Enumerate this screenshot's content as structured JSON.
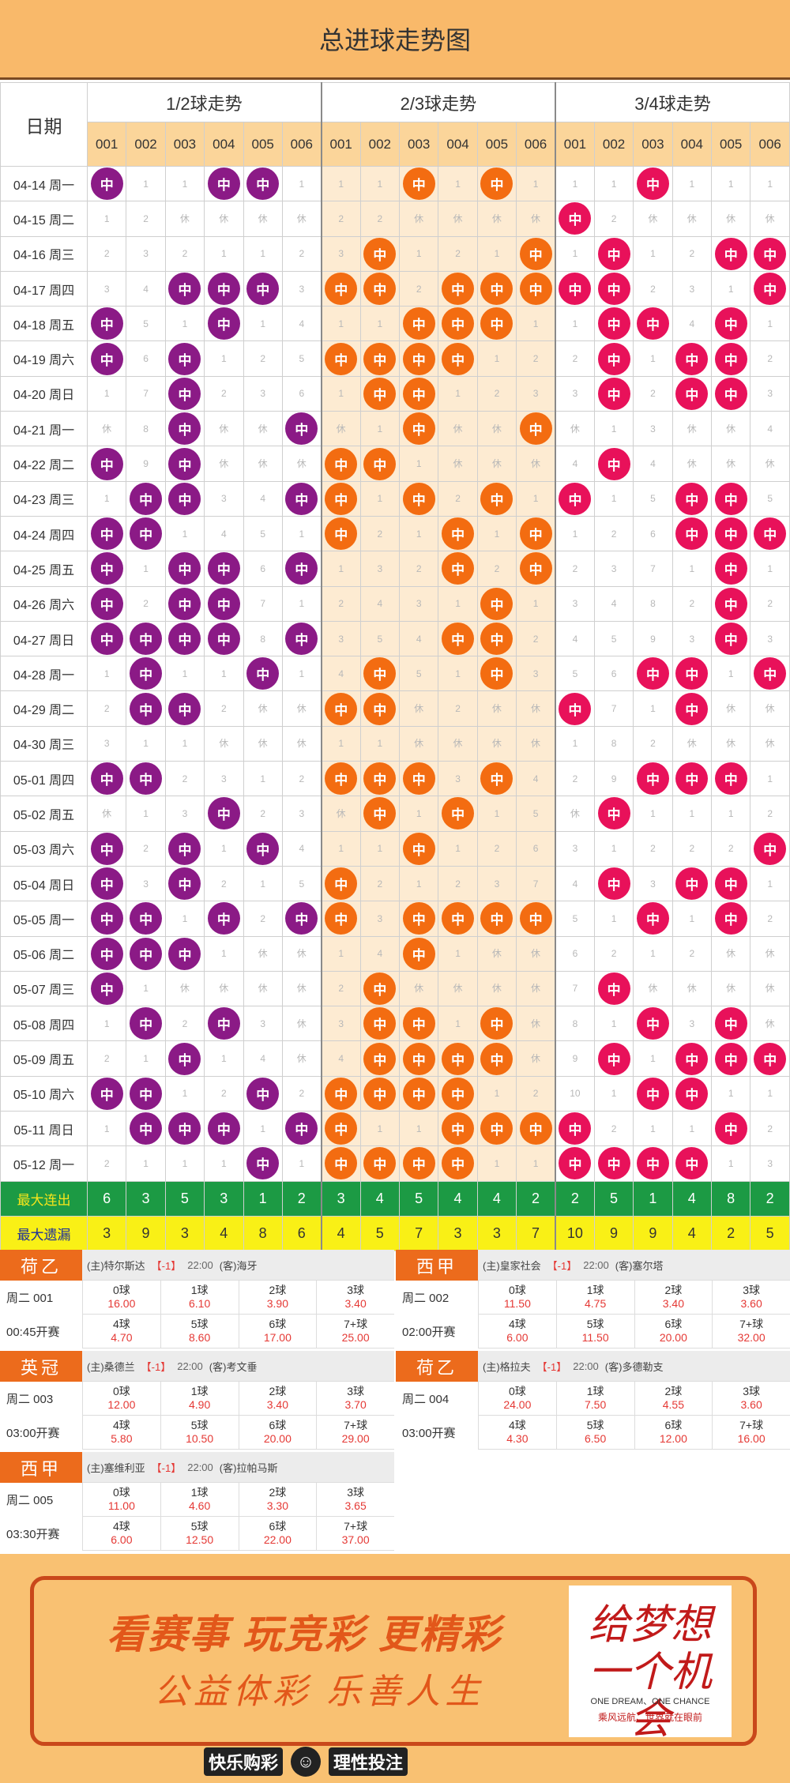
{
  "title": "总进球走势图",
  "header": {
    "date_label": "日期",
    "groups": [
      "1/2球走势",
      "2/3球走势",
      "3/4球走势"
    ],
    "sub_cols": [
      "001",
      "002",
      "003",
      "004",
      "005",
      "006"
    ]
  },
  "hit_label": "中",
  "dates": [
    "04-14 周一",
    "04-15 周二",
    "04-16 周三",
    "04-17 周四",
    "04-18 周五",
    "04-19 周六",
    "04-20 周日",
    "04-21 周一",
    "04-22 周二",
    "04-23 周三",
    "04-24 周四",
    "04-25 周五",
    "04-26 周六",
    "04-27 周日",
    "04-28 周一",
    "04-29 周二",
    "04-30 周三",
    "05-01 周四",
    "05-02 周五",
    "05-03 周六",
    "05-04 周日",
    "05-05 周一",
    "05-06 周二",
    "05-07 周三",
    "05-08 周四",
    "05-09 周五",
    "05-10 周六",
    "05-11 周日",
    "05-12 周一"
  ],
  "g1": [
    [
      "中",
      "1",
      "1",
      "中",
      "中",
      "1"
    ],
    [
      "1",
      "2",
      "休",
      "休",
      "休",
      "休"
    ],
    [
      "2",
      "3",
      "2",
      "1",
      "1",
      "2"
    ],
    [
      "3",
      "4",
      "中",
      "中",
      "中",
      "3"
    ],
    [
      "中",
      "5",
      "1",
      "中",
      "1",
      "4"
    ],
    [
      "中",
      "6",
      "中",
      "1",
      "2",
      "5"
    ],
    [
      "1",
      "7",
      "中",
      "2",
      "3",
      "6"
    ],
    [
      "休",
      "8",
      "中",
      "休",
      "休",
      "中"
    ],
    [
      "中",
      "9",
      "中",
      "休",
      "休",
      "休"
    ],
    [
      "1",
      "中",
      "中",
      "3",
      "4",
      "中"
    ],
    [
      "中",
      "中",
      "1",
      "4",
      "5",
      "1"
    ],
    [
      "中",
      "1",
      "中",
      "中",
      "6",
      "中"
    ],
    [
      "中",
      "2",
      "中",
      "中",
      "7",
      "1"
    ],
    [
      "中",
      "中",
      "中",
      "中",
      "8",
      "中"
    ],
    [
      "1",
      "中",
      "1",
      "1",
      "中",
      "1"
    ],
    [
      "2",
      "中",
      "中",
      "2",
      "休",
      "休"
    ],
    [
      "3",
      "1",
      "1",
      "休",
      "休",
      "休"
    ],
    [
      "中",
      "中",
      "2",
      "3",
      "1",
      "2"
    ],
    [
      "休",
      "1",
      "3",
      "中",
      "2",
      "3"
    ],
    [
      "中",
      "2",
      "中",
      "1",
      "中",
      "4"
    ],
    [
      "中",
      "3",
      "中",
      "2",
      "1",
      "5"
    ],
    [
      "中",
      "中",
      "1",
      "中",
      "2",
      "中"
    ],
    [
      "中",
      "中",
      "中",
      "1",
      "休",
      "休"
    ],
    [
      "中",
      "1",
      "休",
      "休",
      "休",
      "休"
    ],
    [
      "1",
      "中",
      "2",
      "中",
      "3",
      "休"
    ],
    [
      "2",
      "1",
      "中",
      "1",
      "4",
      "休"
    ],
    [
      "中",
      "中",
      "1",
      "2",
      "中",
      "2"
    ],
    [
      "1",
      "中",
      "中",
      "中",
      "1",
      "中"
    ],
    [
      "2",
      "1",
      "1",
      "1",
      "中",
      "1"
    ]
  ],
  "g2": [
    [
      "1",
      "1",
      "中",
      "1",
      "中",
      "1"
    ],
    [
      "2",
      "2",
      "休",
      "休",
      "休",
      "休"
    ],
    [
      "3",
      "中",
      "1",
      "2",
      "1",
      "中"
    ],
    [
      "中",
      "中",
      "2",
      "中",
      "中",
      "中"
    ],
    [
      "1",
      "1",
      "中",
      "中",
      "中",
      "1"
    ],
    [
      "中",
      "中",
      "中",
      "中",
      "1",
      "2"
    ],
    [
      "1",
      "中",
      "中",
      "1",
      "2",
      "3"
    ],
    [
      "休",
      "1",
      "中",
      "休",
      "休",
      "中"
    ],
    [
      "中",
      "中",
      "1",
      "休",
      "休",
      "休"
    ],
    [
      "中",
      "1",
      "中",
      "2",
      "中",
      "1"
    ],
    [
      "中",
      "2",
      "1",
      "中",
      "1",
      "中"
    ],
    [
      "1",
      "3",
      "2",
      "中",
      "2",
      "中"
    ],
    [
      "2",
      "4",
      "3",
      "1",
      "中",
      "1"
    ],
    [
      "3",
      "5",
      "4",
      "中",
      "中",
      "2"
    ],
    [
      "4",
      "中",
      "5",
      "1",
      "中",
      "3"
    ],
    [
      "中",
      "中",
      "休",
      "2",
      "休",
      "休"
    ],
    [
      "1",
      "1",
      "休",
      "休",
      "休",
      "休"
    ],
    [
      "中",
      "中",
      "中",
      "3",
      "中",
      "4"
    ],
    [
      "休",
      "中",
      "1",
      "中",
      "1",
      "5"
    ],
    [
      "1",
      "1",
      "中",
      "1",
      "2",
      "6"
    ],
    [
      "中",
      "2",
      "1",
      "2",
      "3",
      "7"
    ],
    [
      "中",
      "3",
      "中",
      "中",
      "中",
      "中"
    ],
    [
      "1",
      "4",
      "中",
      "1",
      "休",
      "休"
    ],
    [
      "2",
      "中",
      "休",
      "休",
      "休",
      "休"
    ],
    [
      "3",
      "中",
      "中",
      "1",
      "中",
      "休"
    ],
    [
      "4",
      "中",
      "中",
      "中",
      "中",
      "休"
    ],
    [
      "中",
      "中",
      "中",
      "中",
      "1",
      "2"
    ],
    [
      "中",
      "1",
      "1",
      "中",
      "中",
      "中"
    ],
    [
      "中",
      "中",
      "中",
      "中",
      "1",
      "1"
    ]
  ],
  "g3": [
    [
      "1",
      "1",
      "中",
      "1",
      "1",
      "1"
    ],
    [
      "中",
      "2",
      "休",
      "休",
      "休",
      "休"
    ],
    [
      "1",
      "中",
      "1",
      "2",
      "中",
      "中"
    ],
    [
      "中",
      "中",
      "2",
      "3",
      "1",
      "中"
    ],
    [
      "1",
      "中",
      "中",
      "4",
      "中",
      "1"
    ],
    [
      "2",
      "中",
      "1",
      "中",
      "中",
      "2"
    ],
    [
      "3",
      "中",
      "2",
      "中",
      "中",
      "3"
    ],
    [
      "休",
      "1",
      "3",
      "休",
      "休",
      "4"
    ],
    [
      "4",
      "中",
      "4",
      "休",
      "休",
      "休"
    ],
    [
      "中",
      "1",
      "5",
      "中",
      "中",
      "5"
    ],
    [
      "1",
      "2",
      "6",
      "中",
      "中",
      "中"
    ],
    [
      "2",
      "3",
      "7",
      "1",
      "中",
      "1"
    ],
    [
      "3",
      "4",
      "8",
      "2",
      "中",
      "2"
    ],
    [
      "4",
      "5",
      "9",
      "3",
      "中",
      "3"
    ],
    [
      "5",
      "6",
      "中",
      "中",
      "1",
      "中"
    ],
    [
      "中",
      "7",
      "1",
      "中",
      "休",
      "休"
    ],
    [
      "1",
      "8",
      "2",
      "休",
      "休",
      "休"
    ],
    [
      "2",
      "9",
      "中",
      "中",
      "中",
      "1"
    ],
    [
      "休",
      "中",
      "1",
      "1",
      "1",
      "2"
    ],
    [
      "3",
      "1",
      "2",
      "2",
      "2",
      "中"
    ],
    [
      "4",
      "中",
      "3",
      "中",
      "中",
      "1"
    ],
    [
      "5",
      "1",
      "中",
      "1",
      "中",
      "2"
    ],
    [
      "6",
      "2",
      "1",
      "2",
      "休",
      "休"
    ],
    [
      "7",
      "中",
      "休",
      "休",
      "休",
      "休"
    ],
    [
      "8",
      "1",
      "中",
      "3",
      "中",
      "休"
    ],
    [
      "9",
      "中",
      "1",
      "中",
      "中",
      "中"
    ],
    [
      "10",
      "1",
      "中",
      "中",
      "1",
      "1"
    ],
    [
      "中",
      "2",
      "1",
      "1",
      "中",
      "2"
    ],
    [
      "中",
      "中",
      "中",
      "中",
      "1",
      "3"
    ]
  ],
  "stats": {
    "max_streak_label": "最大连出",
    "max_streak": [
      "6",
      "3",
      "5",
      "3",
      "1",
      "2",
      "3",
      "4",
      "5",
      "4",
      "4",
      "2",
      "2",
      "5",
      "1",
      "4",
      "8",
      "2"
    ],
    "max_miss_label": "最大遗漏",
    "max_miss": [
      "3",
      "9",
      "3",
      "4",
      "8",
      "6",
      "4",
      "5",
      "7",
      "3",
      "3",
      "7",
      "10",
      "9",
      "9",
      "4",
      "2",
      "5"
    ]
  },
  "matches": [
    {
      "league": "荷乙",
      "home": "(主)特尔斯达",
      "hc": "【-1】",
      "time": "22:00",
      "away": "(客)海牙",
      "no": "周二 001",
      "start": "00:45开赛",
      "odds": [
        [
          "0球",
          "16.00"
        ],
        [
          "1球",
          "6.10"
        ],
        [
          "2球",
          "3.90"
        ],
        [
          "3球",
          "3.40"
        ],
        [
          "4球",
          "4.70"
        ],
        [
          "5球",
          "8.60"
        ],
        [
          "6球",
          "17.00"
        ],
        [
          "7+球",
          "25.00"
        ]
      ]
    },
    {
      "league": "西甲",
      "home": "(主)皇家社会",
      "hc": "【-1】",
      "time": "22:00",
      "away": "(客)塞尔塔",
      "no": "周二 002",
      "start": "02:00开赛",
      "odds": [
        [
          "0球",
          "11.50"
        ],
        [
          "1球",
          "4.75"
        ],
        [
          "2球",
          "3.40"
        ],
        [
          "3球",
          "3.60"
        ],
        [
          "4球",
          "6.00"
        ],
        [
          "5球",
          "11.50"
        ],
        [
          "6球",
          "20.00"
        ],
        [
          "7+球",
          "32.00"
        ]
      ]
    },
    {
      "league": "英冠",
      "home": "(主)桑德兰",
      "hc": "【-1】",
      "time": "22:00",
      "away": "(客)考文垂",
      "no": "周二 003",
      "start": "03:00开赛",
      "odds": [
        [
          "0球",
          "12.00"
        ],
        [
          "1球",
          "4.90"
        ],
        [
          "2球",
          "3.40"
        ],
        [
          "3球",
          "3.70"
        ],
        [
          "4球",
          "5.80"
        ],
        [
          "5球",
          "10.50"
        ],
        [
          "6球",
          "20.00"
        ],
        [
          "7+球",
          "29.00"
        ]
      ]
    },
    {
      "league": "荷乙",
      "home": "(主)格拉夫",
      "hc": "【-1】",
      "time": "22:00",
      "away": "(客)多德勒支",
      "no": "周二 004",
      "start": "03:00开赛",
      "odds": [
        [
          "0球",
          "24.00"
        ],
        [
          "1球",
          "7.50"
        ],
        [
          "2球",
          "4.55"
        ],
        [
          "3球",
          "3.60"
        ],
        [
          "4球",
          "4.30"
        ],
        [
          "5球",
          "6.50"
        ],
        [
          "6球",
          "12.00"
        ],
        [
          "7+球",
          "16.00"
        ]
      ]
    },
    {
      "league": "西甲",
      "home": "(主)塞维利亚",
      "hc": "【-1】",
      "time": "22:00",
      "away": "(客)拉帕马斯",
      "no": "周二 005",
      "start": "03:30开赛",
      "odds": [
        [
          "0球",
          "11.00"
        ],
        [
          "1球",
          "4.60"
        ],
        [
          "2球",
          "3.30"
        ],
        [
          "3球",
          "3.65"
        ],
        [
          "4球",
          "6.00"
        ],
        [
          "5球",
          "12.50"
        ],
        [
          "6球",
          "22.00"
        ],
        [
          "7+球",
          "37.00"
        ]
      ]
    }
  ],
  "banner": {
    "line1": "看赛事 玩竞彩 更精彩",
    "line2": "公益体彩 乐善人生",
    "card_calligraphy": "给梦想一个机会",
    "card_en": "ONE DREAM、ONE CHANCE",
    "card_zh": "乘风远航、世界就在眼前",
    "footer_left": "快乐购彩",
    "footer_right": "理性投注"
  },
  "colors": {
    "g1_hit": "#8b1a86",
    "g2_hit": "#f36c11",
    "g3_hit": "#e8115a",
    "header_bg": "#f9b96a",
    "league_bg": "#ec6b1c",
    "streak_bg": "#1c9a44",
    "miss_bg": "#f9f016"
  }
}
